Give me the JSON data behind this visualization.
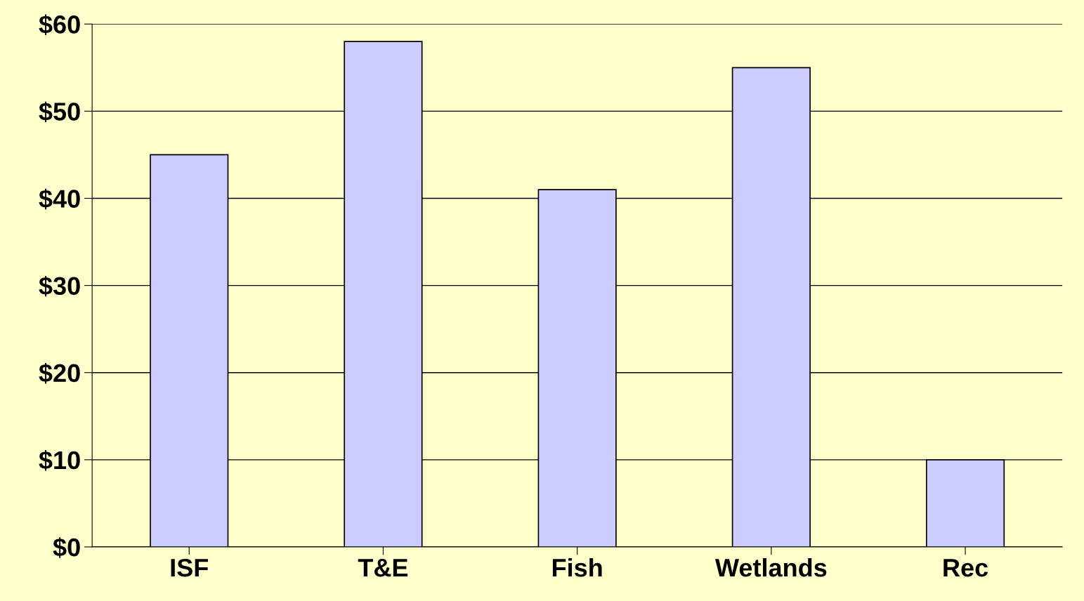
{
  "chart_data": {
    "type": "bar",
    "categories": [
      "ISF",
      "T&E",
      "Fish",
      "Wetlands",
      "Rec"
    ],
    "values": [
      45,
      58,
      41,
      55,
      10
    ],
    "color": "#ccccff",
    "ylim": [
      0,
      60
    ],
    "yticks": [
      {
        "value": 0,
        "label": "$0"
      },
      {
        "value": 10,
        "label": "$10"
      },
      {
        "value": 20,
        "label": "$20"
      },
      {
        "value": 30,
        "label": "$30"
      },
      {
        "value": 40,
        "label": "$40"
      },
      {
        "value": 50,
        "label": "$50"
      },
      {
        "value": 60,
        "label": "$60"
      }
    ],
    "grid": "y"
  }
}
